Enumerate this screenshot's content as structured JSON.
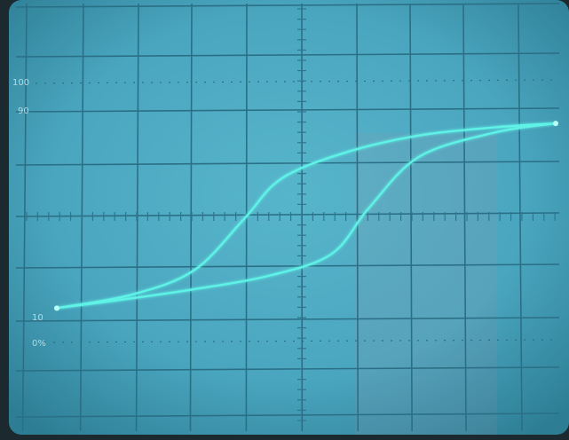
{
  "screen_labels": {
    "label_100": "100",
    "label_90": "90",
    "label_10": "10",
    "label_0": "0%"
  },
  "colors": {
    "screen": "#4aa6bf",
    "screen_edge": "#2f7f96",
    "grid": "#2b6f86",
    "trace": "#5ff2e6",
    "trace_glow": "#b8fff8",
    "bezel": "#1c2a30"
  },
  "trace": {
    "description_of_shape": "hysteresis-loop",
    "upper_branch": [
      [
        -1.0,
        -0.68
      ],
      [
        -0.7,
        -0.58
      ],
      [
        -0.45,
        -0.4
      ],
      [
        -0.25,
        -0.02
      ],
      [
        -0.1,
        0.28
      ],
      [
        0.15,
        0.47
      ],
      [
        0.45,
        0.6
      ],
      [
        0.75,
        0.66
      ],
      [
        1.0,
        0.69
      ]
    ],
    "lower_branch": [
      [
        1.0,
        0.69
      ],
      [
        0.75,
        0.62
      ],
      [
        0.45,
        0.44
      ],
      [
        0.25,
        0.06
      ],
      [
        0.1,
        -0.28
      ],
      [
        -0.15,
        -0.44
      ],
      [
        -0.45,
        -0.54
      ],
      [
        -0.75,
        -0.62
      ],
      [
        -1.0,
        -0.68
      ]
    ]
  }
}
